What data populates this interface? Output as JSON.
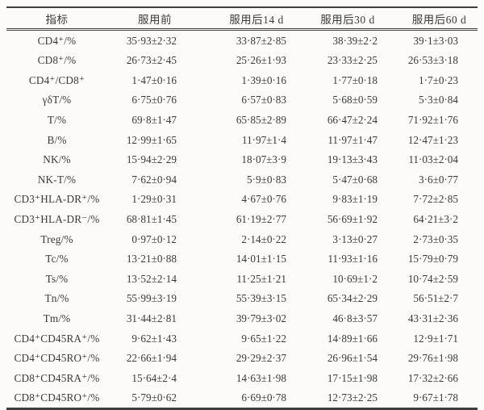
{
  "colors": {
    "background": "#fbfaf8",
    "rule": "#3f3f3f",
    "text": "#3a3a3a"
  },
  "table": {
    "columns": [
      "指标",
      "服用前",
      "服用后14 d",
      "服用后30 d",
      "服用后60 d"
    ],
    "rows": [
      {
        "label": "CD4⁺/%",
        "values": [
          "35·93±2·32",
          "33·87±2·85",
          "38·39±2·2",
          "39·1±3·03"
        ]
      },
      {
        "label": "CD8⁺/%",
        "values": [
          "26·73±2·45",
          "25·26±1·93",
          "23·33±2·25",
          "26·53±3·18"
        ]
      },
      {
        "label": "CD4⁺/CD8⁺",
        "values": [
          "1·47±0·16",
          "1·39±0·16",
          "1·77±0·18",
          "1·7±0·23"
        ]
      },
      {
        "label": "γδT/%",
        "values": [
          "6·75±0·76",
          "6·57±0·83",
          "5·68±0·59",
          "5·3±0·84"
        ]
      },
      {
        "label": "T/%",
        "values": [
          "69·8±1·47",
          "65·85±2·89",
          "66·47±2·24",
          "71·92±1·76"
        ]
      },
      {
        "label": "B/%",
        "values": [
          "12·99±1·65",
          "11·97±1·4",
          "11·97±1·47",
          "12·47±1·23"
        ]
      },
      {
        "label": "NK/%",
        "values": [
          "15·94±2·29",
          "18·07±3·9",
          "19·13±3·43",
          "11·03±2·04"
        ]
      },
      {
        "label": "NK-T/%",
        "values": [
          "7·62±0·94",
          "5·9±0·83",
          "5·47±0·68",
          "3·6±0·77"
        ]
      },
      {
        "label": "CD3⁺HLA-DR⁺/%",
        "values": [
          "1·29±0·31",
          "4·67±0·76",
          "9·83±1·19",
          "7·72±2·85"
        ]
      },
      {
        "label": "CD3⁺HLA-DR⁻/%",
        "values": [
          "68·81±1·45",
          "61·19±2·77",
          "56·69±1·92",
          "64·21±3·2"
        ]
      },
      {
        "label": "Treg/%",
        "values": [
          "0·97±0·12",
          "2·14±0·22",
          "3·13±0·27",
          "2·73±0·35"
        ]
      },
      {
        "label": "Tc/%",
        "values": [
          "13·21±0·88",
          "14·01±1·15",
          "11·93±1·16",
          "15·79±0·79"
        ]
      },
      {
        "label": "Ts/%",
        "values": [
          "13·52±2·14",
          "11·25±1·21",
          "10·69±1·2",
          "10·74±2·59"
        ]
      },
      {
        "label": "Tn/%",
        "values": [
          "55·99±3·19",
          "55·39±3·15",
          "65·34±2·29",
          "56·51±2·7"
        ]
      },
      {
        "label": "Tm/%",
        "values": [
          "31·44±2·81",
          "39·79±3·02",
          "46·8±3·57",
          "43·31±2·36"
        ]
      },
      {
        "label": "CD4⁺CD45RA⁺/%",
        "values": [
          "9·62±1·43",
          "9·65±1·22",
          "14·89±1·66",
          "12·9±1·71"
        ]
      },
      {
        "label": "CD4⁺CD45RO⁺/%",
        "values": [
          "22·66±1·94",
          "29·29±2·37",
          "26·96±1·54",
          "29·76±1·98"
        ]
      },
      {
        "label": "CD8⁺CD45RA⁺/%",
        "values": [
          "15·64±2·4",
          "14·63±1·98",
          "17·15±1·98",
          "17·32±2·66"
        ]
      },
      {
        "label": "CD8⁺CD45RO⁺/%",
        "values": [
          "5·79±0·62",
          "6·69±0·78",
          "12·73±2·25",
          "9·67±1·78"
        ]
      }
    ]
  }
}
